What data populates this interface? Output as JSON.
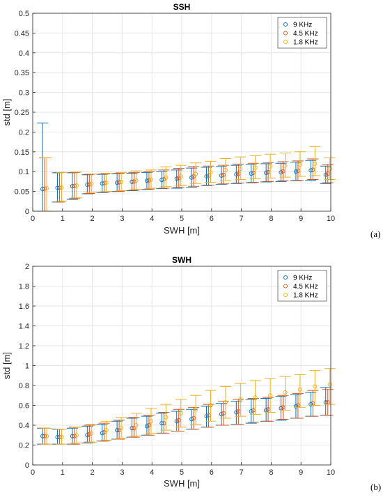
{
  "chart_data": [
    {
      "type": "scatter",
      "panel_label": "(a)",
      "title": "SSH",
      "xlabel": "SWH [m]",
      "ylabel": "std [m]",
      "xlim": [
        0,
        10
      ],
      "ylim": [
        0,
        0.5
      ],
      "xticks": [
        "0",
        "1",
        "2",
        "3",
        "4",
        "5",
        "6",
        "7",
        "8",
        "9",
        "10"
      ],
      "yticks": [
        "0",
        "0.05",
        "0.1",
        "0.15",
        "0.2",
        "0.25",
        "0.3",
        "0.35",
        "0.4",
        "0.45",
        "0.5"
      ],
      "grid": true,
      "legend_position": "top-right",
      "x": [
        0.4,
        0.9,
        1.4,
        1.9,
        2.4,
        2.9,
        3.4,
        3.9,
        4.4,
        4.9,
        5.4,
        5.9,
        6.4,
        6.9,
        7.4,
        7.9,
        8.4,
        8.9,
        9.4,
        9.9
      ],
      "series": [
        {
          "name": "9 KHz",
          "color": "#0072BD",
          "values": [
            0.056,
            0.059,
            0.063,
            0.067,
            0.07,
            0.072,
            0.074,
            0.077,
            0.079,
            0.082,
            0.085,
            0.088,
            0.09,
            0.093,
            0.095,
            0.097,
            0.098,
            0.1,
            0.103,
            0.092
          ],
          "err_low": [
            0.0,
            0.023,
            0.03,
            0.044,
            0.047,
            0.05,
            0.052,
            0.055,
            0.057,
            0.058,
            0.06,
            0.065,
            0.068,
            0.07,
            0.072,
            0.074,
            0.075,
            0.077,
            0.078,
            0.07
          ],
          "err_high": [
            0.223,
            0.097,
            0.097,
            0.092,
            0.093,
            0.095,
            0.096,
            0.098,
            0.1,
            0.104,
            0.109,
            0.111,
            0.113,
            0.116,
            0.118,
            0.12,
            0.121,
            0.124,
            0.128,
            0.114
          ]
        },
        {
          "name": "4.5 KHz",
          "color": "#D95319",
          "values": [
            0.057,
            0.059,
            0.064,
            0.068,
            0.071,
            0.073,
            0.075,
            0.078,
            0.081,
            0.084,
            0.088,
            0.09,
            0.092,
            0.095,
            0.097,
            0.099,
            0.101,
            0.102,
            0.105,
            0.095
          ],
          "err_low": [
            0.0,
            0.023,
            0.032,
            0.045,
            0.048,
            0.05,
            0.053,
            0.056,
            0.058,
            0.06,
            0.063,
            0.066,
            0.069,
            0.071,
            0.073,
            0.075,
            0.077,
            0.078,
            0.08,
            0.072
          ],
          "err_high": [
            0.135,
            0.098,
            0.098,
            0.093,
            0.094,
            0.096,
            0.098,
            0.1,
            0.104,
            0.108,
            0.113,
            0.114,
            0.116,
            0.119,
            0.121,
            0.123,
            0.125,
            0.127,
            0.132,
            0.118
          ]
        },
        {
          "name": "1.8 KHz",
          "color": "#EDB120",
          "values": [
            0.058,
            0.06,
            0.065,
            0.069,
            0.072,
            0.074,
            0.077,
            0.08,
            0.085,
            0.088,
            0.094,
            0.098,
            0.104,
            0.107,
            0.11,
            0.113,
            0.115,
            0.118,
            0.12,
            0.107
          ],
          "err_low": [
            0.0,
            0.026,
            0.034,
            0.047,
            0.05,
            0.052,
            0.055,
            0.058,
            0.062,
            0.064,
            0.07,
            0.073,
            0.077,
            0.08,
            0.082,
            0.084,
            0.086,
            0.088,
            0.09,
            0.08
          ],
          "err_high": [
            0.135,
            0.098,
            0.099,
            0.094,
            0.096,
            0.098,
            0.102,
            0.104,
            0.112,
            0.116,
            0.122,
            0.126,
            0.133,
            0.137,
            0.14,
            0.144,
            0.147,
            0.15,
            0.163,
            0.135
          ]
        }
      ]
    },
    {
      "type": "scatter",
      "panel_label": "(b)",
      "title": "SWH",
      "xlabel": "SWH [m]",
      "ylabel": "std [m]",
      "xlim": [
        0,
        10
      ],
      "ylim": [
        0,
        2
      ],
      "xticks": [
        "0",
        "1",
        "2",
        "3",
        "4",
        "5",
        "6",
        "7",
        "8",
        "9",
        "10"
      ],
      "yticks": [
        "0",
        "0.2",
        "0.4",
        "0.6",
        "0.8",
        "1",
        "1.2",
        "1.4",
        "1.6",
        "1.8",
        "2"
      ],
      "grid": true,
      "legend_position": "top-right",
      "x": [
        0.4,
        0.9,
        1.4,
        1.9,
        2.4,
        2.9,
        3.4,
        3.9,
        4.4,
        4.9,
        5.4,
        5.9,
        6.4,
        6.9,
        7.4,
        7.9,
        8.4,
        8.9,
        9.4,
        9.9
      ],
      "series": [
        {
          "name": "9 KHz",
          "color": "#0072BD",
          "values": [
            0.29,
            0.28,
            0.29,
            0.3,
            0.32,
            0.35,
            0.37,
            0.39,
            0.42,
            0.44,
            0.46,
            0.49,
            0.51,
            0.53,
            0.54,
            0.55,
            0.57,
            0.59,
            0.61,
            0.63
          ],
          "err_low": [
            0.21,
            0.21,
            0.21,
            0.22,
            0.24,
            0.26,
            0.28,
            0.3,
            0.32,
            0.34,
            0.36,
            0.38,
            0.4,
            0.41,
            0.42,
            0.44,
            0.45,
            0.47,
            0.49,
            0.5
          ],
          "err_high": [
            0.37,
            0.36,
            0.37,
            0.39,
            0.41,
            0.44,
            0.47,
            0.49,
            0.52,
            0.54,
            0.56,
            0.59,
            0.62,
            0.64,
            0.66,
            0.67,
            0.69,
            0.71,
            0.73,
            0.78
          ]
        },
        {
          "name": "4.5 KHz",
          "color": "#D95319",
          "values": [
            0.29,
            0.28,
            0.29,
            0.31,
            0.33,
            0.35,
            0.37,
            0.4,
            0.42,
            0.45,
            0.47,
            0.5,
            0.52,
            0.54,
            0.55,
            0.56,
            0.58,
            0.6,
            0.62,
            0.63
          ],
          "err_low": [
            0.21,
            0.21,
            0.21,
            0.23,
            0.24,
            0.26,
            0.28,
            0.3,
            0.32,
            0.34,
            0.36,
            0.38,
            0.4,
            0.41,
            0.43,
            0.44,
            0.46,
            0.47,
            0.49,
            0.5
          ],
          "err_high": [
            0.37,
            0.36,
            0.38,
            0.4,
            0.42,
            0.45,
            0.48,
            0.5,
            0.53,
            0.56,
            0.58,
            0.61,
            0.64,
            0.66,
            0.67,
            0.68,
            0.7,
            0.72,
            0.75,
            0.76
          ]
        },
        {
          "name": "1.8 KHz",
          "color": "#EDB120",
          "values": [
            0.29,
            0.28,
            0.3,
            0.32,
            0.35,
            0.37,
            0.4,
            0.44,
            0.48,
            0.52,
            0.56,
            0.6,
            0.63,
            0.66,
            0.68,
            0.7,
            0.73,
            0.76,
            0.79,
            0.81
          ],
          "err_low": [
            0.21,
            0.21,
            0.22,
            0.23,
            0.25,
            0.27,
            0.29,
            0.32,
            0.35,
            0.38,
            0.41,
            0.44,
            0.47,
            0.49,
            0.51,
            0.53,
            0.55,
            0.58,
            0.6,
            0.61
          ],
          "err_high": [
            0.37,
            0.36,
            0.38,
            0.41,
            0.44,
            0.48,
            0.52,
            0.57,
            0.61,
            0.66,
            0.7,
            0.75,
            0.79,
            0.82,
            0.85,
            0.87,
            0.89,
            0.91,
            0.95,
            0.97
          ]
        }
      ]
    }
  ]
}
